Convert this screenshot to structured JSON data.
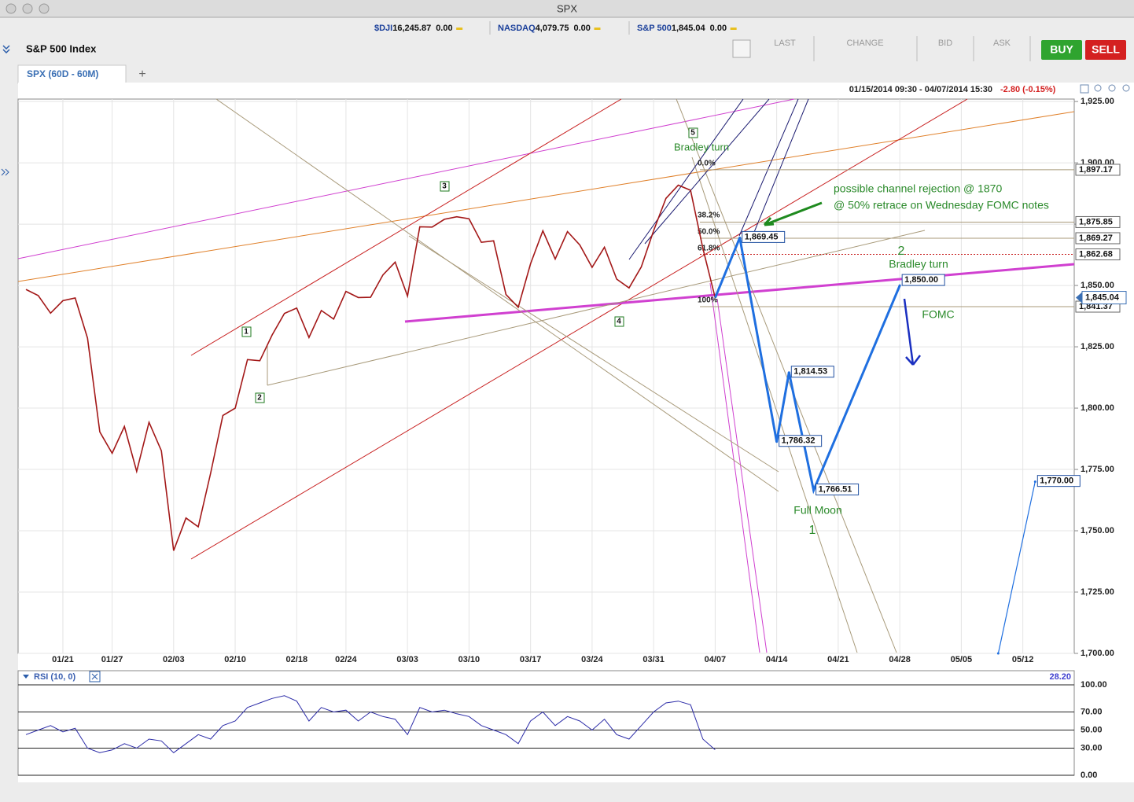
{
  "window": {
    "title": "SPX"
  },
  "ticker": [
    {
      "symbol": "$DJI",
      "price": "16,245.87",
      "change": "0.00"
    },
    {
      "symbol": "NASDAQ",
      "price": "4,079.75",
      "change": "0.00"
    },
    {
      "symbol": "S&P 500",
      "price": "1,845.04",
      "change": "0.00"
    }
  ],
  "header": {
    "title": "S&P 500 Index",
    "columns": [
      "LAST",
      "CHANGE",
      "BID",
      "ASK"
    ],
    "buy": "BUY",
    "sell": "SELL"
  },
  "tab": {
    "label": "SPX (60D - 60M)",
    "add": "+"
  },
  "chart_data": [
    {
      "type": "line",
      "range_text": "01/15/2014 09:30 - 04/07/2014 15:30",
      "change_text": "-2.80 (-0.15%)",
      "x": [
        "01/15",
        "01/16",
        "01/17",
        "01/21",
        "01/22",
        "01/23",
        "01/24",
        "01/27",
        "01/28",
        "01/29",
        "01/30",
        "01/31",
        "02/03",
        "02/04",
        "02/05",
        "02/06",
        "02/07",
        "02/10",
        "02/11",
        "02/12",
        "02/13",
        "02/14",
        "02/18",
        "02/19",
        "02/20",
        "02/21",
        "02/24",
        "02/25",
        "02/26",
        "02/27",
        "02/28",
        "03/03",
        "03/04",
        "03/05",
        "03/06",
        "03/07",
        "03/10",
        "03/11",
        "03/12",
        "03/13",
        "03/14",
        "03/17",
        "03/18",
        "03/19",
        "03/20",
        "03/21",
        "03/24",
        "03/25",
        "03/26",
        "03/27",
        "03/28",
        "03/31",
        "04/01",
        "04/02",
        "04/03",
        "04/04",
        "04/07"
      ],
      "series": [
        {
          "color": "#a31818",
          "values": [
            1848.4,
            1845.9,
            1838.7,
            1843.8,
            1844.9,
            1828.5,
            1790.3,
            1781.6,
            1792.5,
            1774.2,
            1794.2,
            1782.6,
            1741.9,
            1755.2,
            1751.6,
            1773.4,
            1797.0,
            1800.0,
            1819.8,
            1819.3,
            1829.8,
            1838.6,
            1840.8,
            1828.8,
            1839.8,
            1836.3,
            1847.6,
            1845.1,
            1845.2,
            1854.3,
            1859.5,
            1845.7,
            1873.9,
            1873.8,
            1877.0,
            1878.0,
            1877.2,
            1867.6,
            1868.2,
            1846.3,
            1841.1,
            1858.8,
            1872.3,
            1860.8,
            1872.0,
            1866.5,
            1857.4,
            1865.6,
            1852.6,
            1849.0,
            1857.6,
            1872.3,
            1885.5,
            1890.9,
            1888.8,
            1865.1,
            1845.0
          ]
        },
        {
          "color": "#1f6fe0",
          "x": [
            "04/09",
            "04/14",
            "04/15",
            "04/17",
            "04/28"
          ],
          "values": [
            1869.45,
            1786.32,
            1814.53,
            1766.51,
            1850.0
          ],
          "value_labels": [
            "1,869.45",
            "1,786.32",
            "1,814.53",
            "1,766.51",
            "1,850.00"
          ]
        },
        {
          "color": "#1f6fe0",
          "x": [
            "05/08",
            "05/13"
          ],
          "values": [
            1700,
            1770.0
          ],
          "value_labels": [
            null,
            "1,770.00"
          ]
        }
      ],
      "xticks": [
        "01/21",
        "01/27",
        "02/03",
        "02/10",
        "02/18",
        "02/24",
        "03/03",
        "03/10",
        "03/17",
        "03/24",
        "03/31",
        "04/07",
        "04/14",
        "04/21",
        "04/28",
        "05/05",
        "05/12"
      ],
      "ylim": [
        1700,
        1926
      ],
      "yticks": [
        {
          "value": 1700,
          "label": "1,700.00"
        },
        {
          "value": 1725,
          "label": "1,725.00"
        },
        {
          "value": 1750,
          "label": "1,750.00"
        },
        {
          "value": 1775,
          "label": "1,775.00"
        },
        {
          "value": 1800,
          "label": "1,800.00"
        },
        {
          "value": 1825,
          "label": "1,825.00"
        },
        {
          "value": 1850,
          "label": "1,850.00"
        },
        {
          "value": 1875,
          "label": "1,875.00"
        },
        {
          "value": 1900,
          "label": "1,900.00"
        },
        {
          "value": 1925,
          "label": "1,925.00"
        }
      ],
      "grid": true,
      "levels": [
        {
          "value": 1897.17,
          "label": "1,897.17"
        },
        {
          "value": 1875.85,
          "label": "1,875.85"
        },
        {
          "value": 1869.27,
          "label": "1,869.27"
        },
        {
          "value": 1862.68,
          "label": "1,862.68"
        },
        {
          "value": 1841.37,
          "label": "1,841.37"
        }
      ],
      "current": {
        "value": 1845.04,
        "label": "1,845.04"
      },
      "fib_labels": [
        "0.0%",
        "38.2%",
        "50.0%",
        "61.8%",
        "100%"
      ],
      "waves": [
        "1",
        "2",
        "3",
        "4",
        "5"
      ],
      "annotations": [
        "Bradley turn",
        "possible channel rejection @ 1870",
        "@ 50% retrace on Wednesday FOMC notes",
        "2",
        "Bradley turn",
        "FOMC",
        "Full Moon",
        "1"
      ]
    },
    {
      "type": "line",
      "title": "RSI (10, 0)",
      "value_label": "28.20",
      "series": [
        {
          "color": "#2c2ca8",
          "values": [
            45,
            50,
            55,
            48,
            52,
            30,
            25,
            28,
            35,
            30,
            40,
            38,
            25,
            35,
            45,
            40,
            55,
            60,
            75,
            80,
            85,
            88,
            82,
            60,
            75,
            70,
            72,
            60,
            70,
            65,
            62,
            45,
            75,
            70,
            72,
            68,
            65,
            55,
            50,
            45,
            35,
            60,
            70,
            55,
            65,
            60,
            50,
            62,
            45,
            40,
            55,
            70,
            80,
            82,
            78,
            40,
            28.2
          ]
        }
      ],
      "ylim": [
        0,
        100
      ],
      "yticks": [
        {
          "value": 0,
          "label": "0.00"
        },
        {
          "value": 30,
          "label": "30.00"
        },
        {
          "value": 50,
          "label": "50.00"
        },
        {
          "value": 70,
          "label": "70.00"
        },
        {
          "value": 100,
          "label": "100.00"
        }
      ]
    }
  ]
}
